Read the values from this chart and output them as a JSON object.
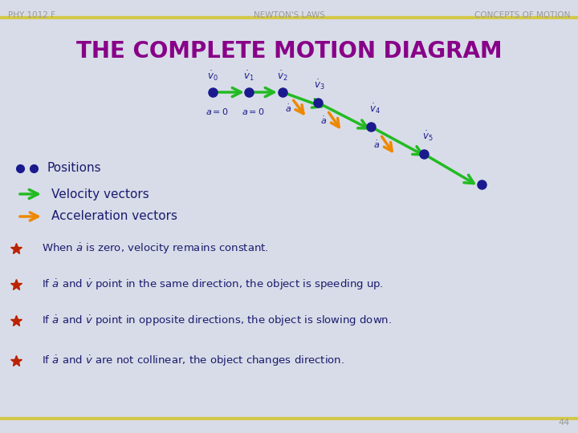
{
  "bg_color": "#d8dce8",
  "header_line_color": "#d4c84a",
  "header_text_color": "#999999",
  "title_color": "#880088",
  "body_text_color": "#1a1a6e",
  "green_arrow_color": "#22bb22",
  "orange_arrow_color": "#ee8800",
  "dot_color": "#1a1a8e",
  "bullet_color": "#bb2200",
  "header_left": "PHY 1012 F",
  "header_center": "NEWTON'S LAWS",
  "header_right": "CONCEPTS OF MOTION",
  "title": "THE COMPLETE MOTION DIAGRAM",
  "page_number": "44"
}
